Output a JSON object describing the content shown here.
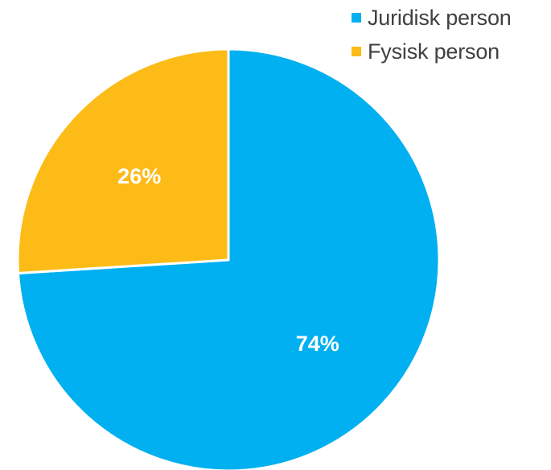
{
  "chart_data": {
    "type": "pie",
    "title": "",
    "series": [
      {
        "name": "",
        "values": [
          74,
          26
        ]
      }
    ],
    "categories": [
      "Juridisk person",
      "Fysisk person"
    ],
    "slices": [
      {
        "label": "Juridisk person",
        "value": 74,
        "data_label": "74%",
        "color": "#00B0F0"
      },
      {
        "label": "Fysisk person",
        "value": 26,
        "data_label": "26%",
        "color": "#FDBB17"
      }
    ],
    "legend": {
      "placement": "top-right",
      "entries": [
        "Juridisk person",
        "Fysisk person"
      ]
    },
    "start_angle_deg": 0,
    "direction": "clockwise",
    "slice_border_color": "#FFFFFF",
    "data_label_color": "#FFFFFF"
  }
}
